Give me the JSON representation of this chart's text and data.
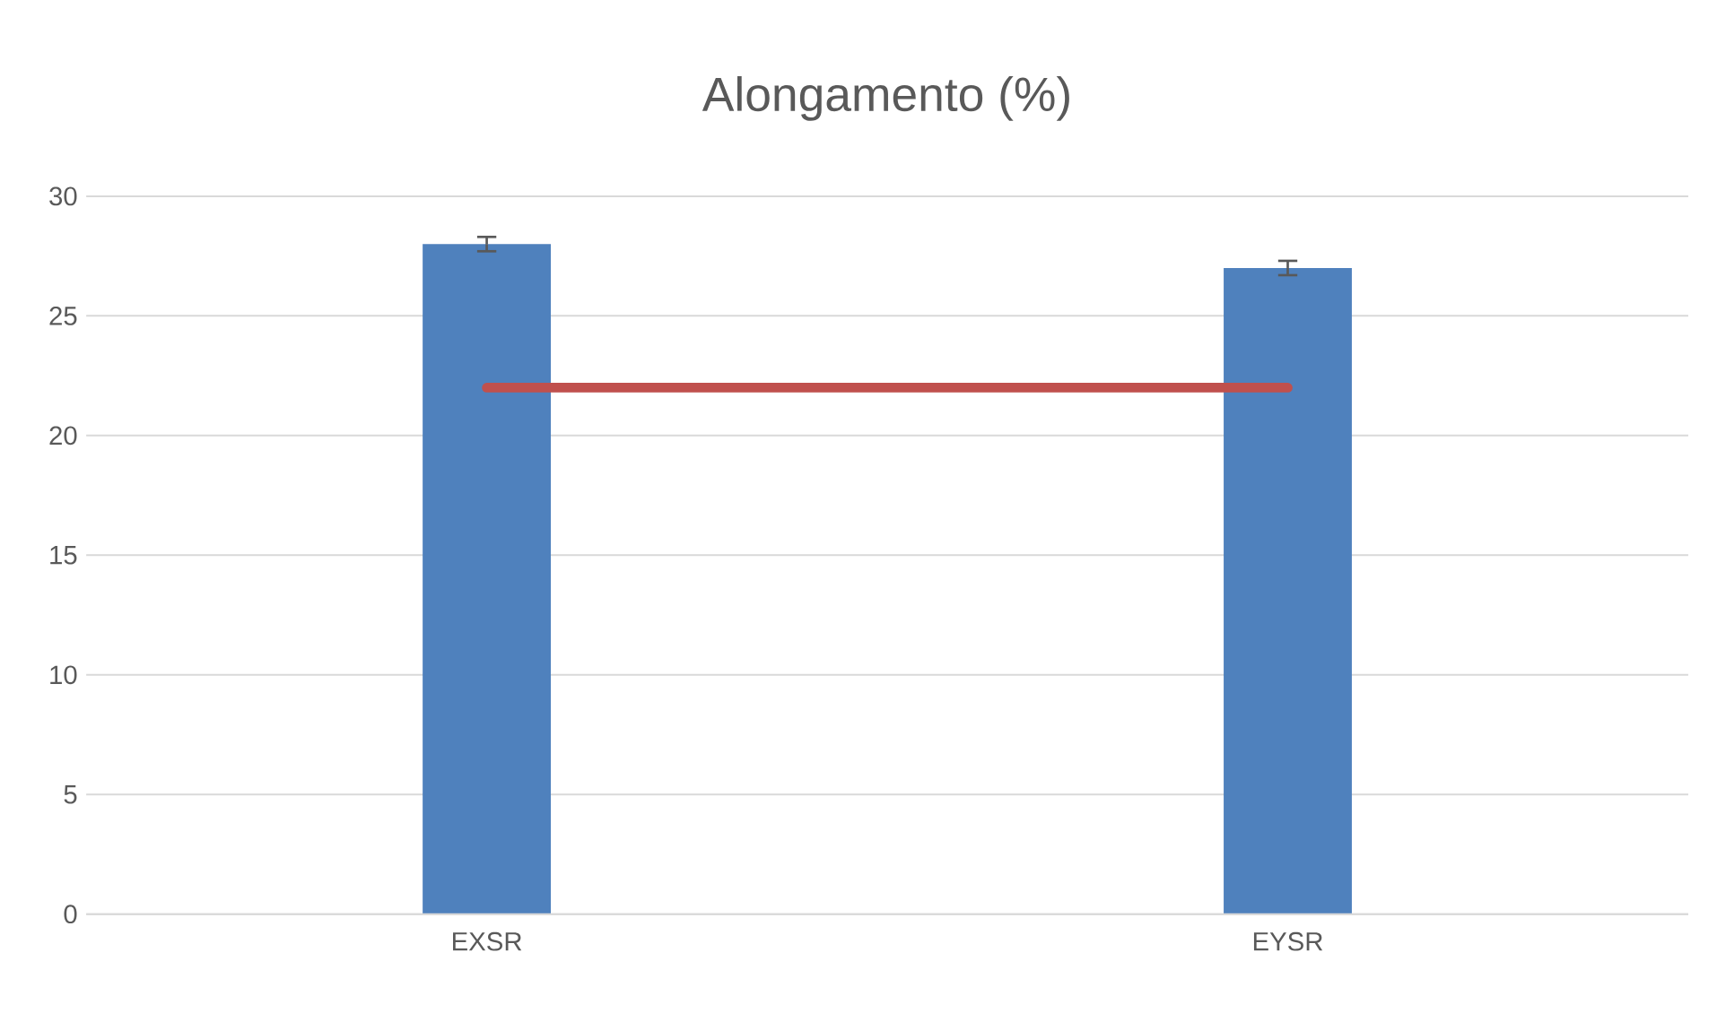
{
  "chart_data": {
    "type": "bar",
    "title": "Alongamento (%)",
    "categories": [
      "EXSR",
      "EYSR"
    ],
    "series": [
      {
        "color": "#4f81bd",
        "values": [
          28,
          27
        ],
        "errors": [
          0.3,
          0.3
        ]
      },
      {
        "type": "line",
        "color": "#c0504d",
        "values": [
          22,
          22
        ],
        "marker": "none"
      }
    ],
    "ylim": [
      0,
      30
    ],
    "yticks": [
      0,
      5,
      10,
      15,
      20,
      25,
      30
    ],
    "grid": "y"
  }
}
